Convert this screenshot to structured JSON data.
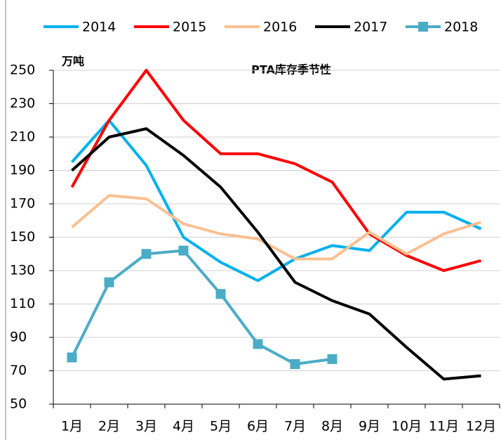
{
  "chart_data": {
    "type": "line",
    "title": "PTA库存季节性",
    "ylabel": "万吨",
    "categories": [
      "1月",
      "2月",
      "3月",
      "4月",
      "5月",
      "6月",
      "7月",
      "8月",
      "9月",
      "10月",
      "11月",
      "12月"
    ],
    "series": [
      {
        "name": "2014",
        "color": "#00b0f0",
        "values": [
          195,
          220,
          193,
          150,
          135,
          124,
          137,
          145,
          142,
          165,
          165,
          155
        ]
      },
      {
        "name": "2015",
        "color": "#ff0000",
        "values": [
          180,
          220,
          250,
          220,
          200,
          200,
          194,
          183,
          152,
          139,
          130,
          136
        ]
      },
      {
        "name": "2016",
        "color": "#fac090",
        "values": [
          156,
          175,
          173,
          158,
          152,
          149,
          137,
          137,
          153,
          140,
          152,
          159
        ]
      },
      {
        "name": "2017",
        "color": "#000000",
        "values": [
          190,
          210,
          215,
          199,
          180,
          153,
          123,
          112,
          104,
          84,
          65,
          67
        ]
      },
      {
        "name": "2018",
        "color": "#4bacc6",
        "marker": "square",
        "values": [
          78,
          123,
          140,
          142,
          116,
          86,
          74,
          77,
          null,
          null,
          null,
          null
        ]
      }
    ],
    "ylim": [
      50,
      250
    ],
    "yticks": [
      50,
      70,
      90,
      110,
      130,
      150,
      170,
      190,
      210,
      230,
      250
    ],
    "grid": true
  }
}
